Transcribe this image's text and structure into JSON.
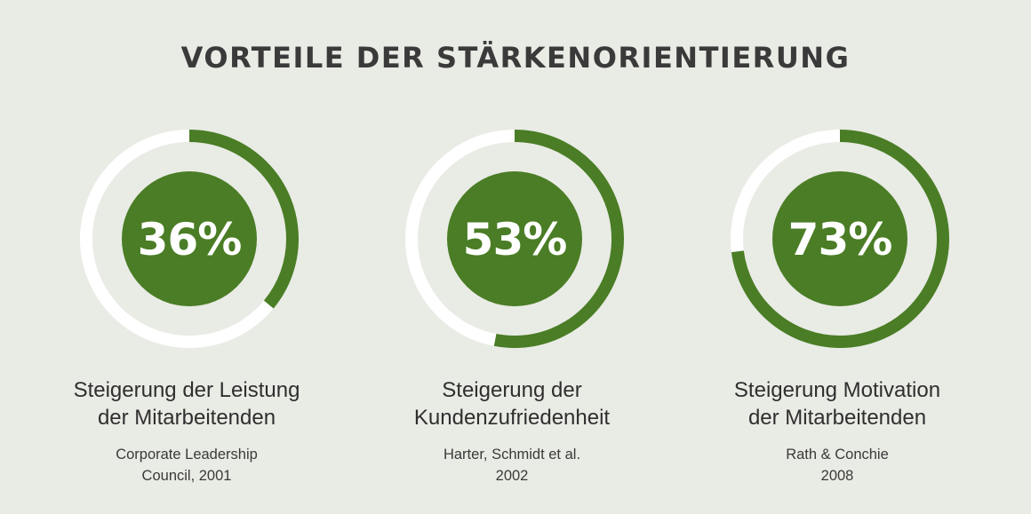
{
  "title": "VORTEILE DER STÄRKENORIENTIERUNG",
  "colors": {
    "background": "#e9ebe5",
    "accent": "#4a7d25",
    "track": "#ffffff",
    "text": "#3a3a3a"
  },
  "chart_data": {
    "type": "pie",
    "title": "VORTEILE DER STÄRKENORIENTIERUNG",
    "items": [
      {
        "value": 36,
        "percent_label": "36%",
        "label_lines": [
          "Steigerung der Leistung",
          "der Mitarbeitenden"
        ],
        "source_lines": [
          "Corporate Leadership",
          "Council, 2001"
        ]
      },
      {
        "value": 53,
        "percent_label": "53%",
        "label_lines": [
          "Steigerung der",
          "Kundenzufriedenheit"
        ],
        "source_lines": [
          "Harter, Schmidt et al.",
          "2002"
        ]
      },
      {
        "value": 73,
        "percent_label": "73%",
        "label_lines": [
          "Steigerung Motivation",
          "der Mitarbeitenden"
        ],
        "source_lines": [
          "Rath & Conchie",
          "2008"
        ]
      }
    ]
  }
}
